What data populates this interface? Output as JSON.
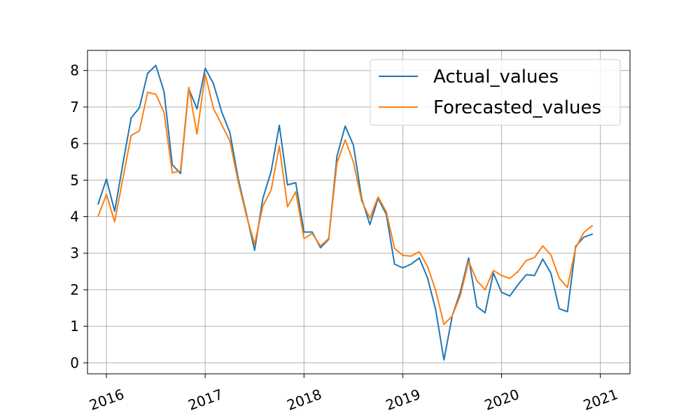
{
  "chart_data": {
    "type": "line",
    "title": "",
    "xlabel": "",
    "ylabel": "",
    "x_start": "2015-12",
    "x_ticks": [
      {
        "label": "2016",
        "month_index": 1
      },
      {
        "label": "2017",
        "month_index": 13
      },
      {
        "label": "2018",
        "month_index": 25
      },
      {
        "label": "2019",
        "month_index": 37
      },
      {
        "label": "2020",
        "month_index": 49
      },
      {
        "label": "2021",
        "month_index": 61
      }
    ],
    "xlim": [
      -1.3,
      64.6
    ],
    "ylim": [
      -0.3,
      8.55
    ],
    "y_ticks": [
      0,
      1,
      2,
      3,
      4,
      5,
      6,
      7,
      8
    ],
    "grid": true,
    "legend": "top-right",
    "series": [
      {
        "name": "Actual_values",
        "color": "#1f77b4",
        "values": [
          4.35,
          5.03,
          4.15,
          5.45,
          6.7,
          6.98,
          7.92,
          8.14,
          7.42,
          5.42,
          5.18,
          7.5,
          6.95,
          8.06,
          7.64,
          6.87,
          6.3,
          5.05,
          4.08,
          3.08,
          4.5,
          5.23,
          6.5,
          4.87,
          4.93,
          3.58,
          3.58,
          3.15,
          3.38,
          5.65,
          6.48,
          5.96,
          4.5,
          3.78,
          4.5,
          4.06,
          2.7,
          2.6,
          2.7,
          2.87,
          2.33,
          1.45,
          0.08,
          1.28,
          1.95,
          2.87,
          1.54,
          1.37,
          2.46,
          1.93,
          1.83,
          2.14,
          2.41,
          2.39,
          2.84,
          2.45,
          1.48,
          1.4,
          3.19,
          3.44,
          3.52
        ]
      },
      {
        "name": "Forecasted_values",
        "color": "#ff7f0e",
        "values": [
          4.02,
          4.61,
          3.86,
          5.05,
          6.22,
          6.35,
          7.4,
          7.35,
          6.85,
          5.2,
          5.25,
          7.54,
          6.26,
          7.9,
          6.96,
          6.52,
          6.07,
          4.96,
          4.03,
          3.25,
          4.29,
          4.72,
          5.93,
          4.27,
          4.68,
          3.4,
          3.54,
          3.2,
          3.4,
          5.47,
          6.1,
          5.5,
          4.43,
          3.96,
          4.54,
          4.13,
          3.13,
          2.94,
          2.92,
          3.04,
          2.64,
          1.98,
          1.05,
          1.28,
          1.85,
          2.78,
          2.25,
          2.0,
          2.53,
          2.39,
          2.31,
          2.5,
          2.8,
          2.88,
          3.2,
          2.95,
          2.32,
          2.06,
          3.15,
          3.57,
          3.75
        ]
      }
    ]
  }
}
